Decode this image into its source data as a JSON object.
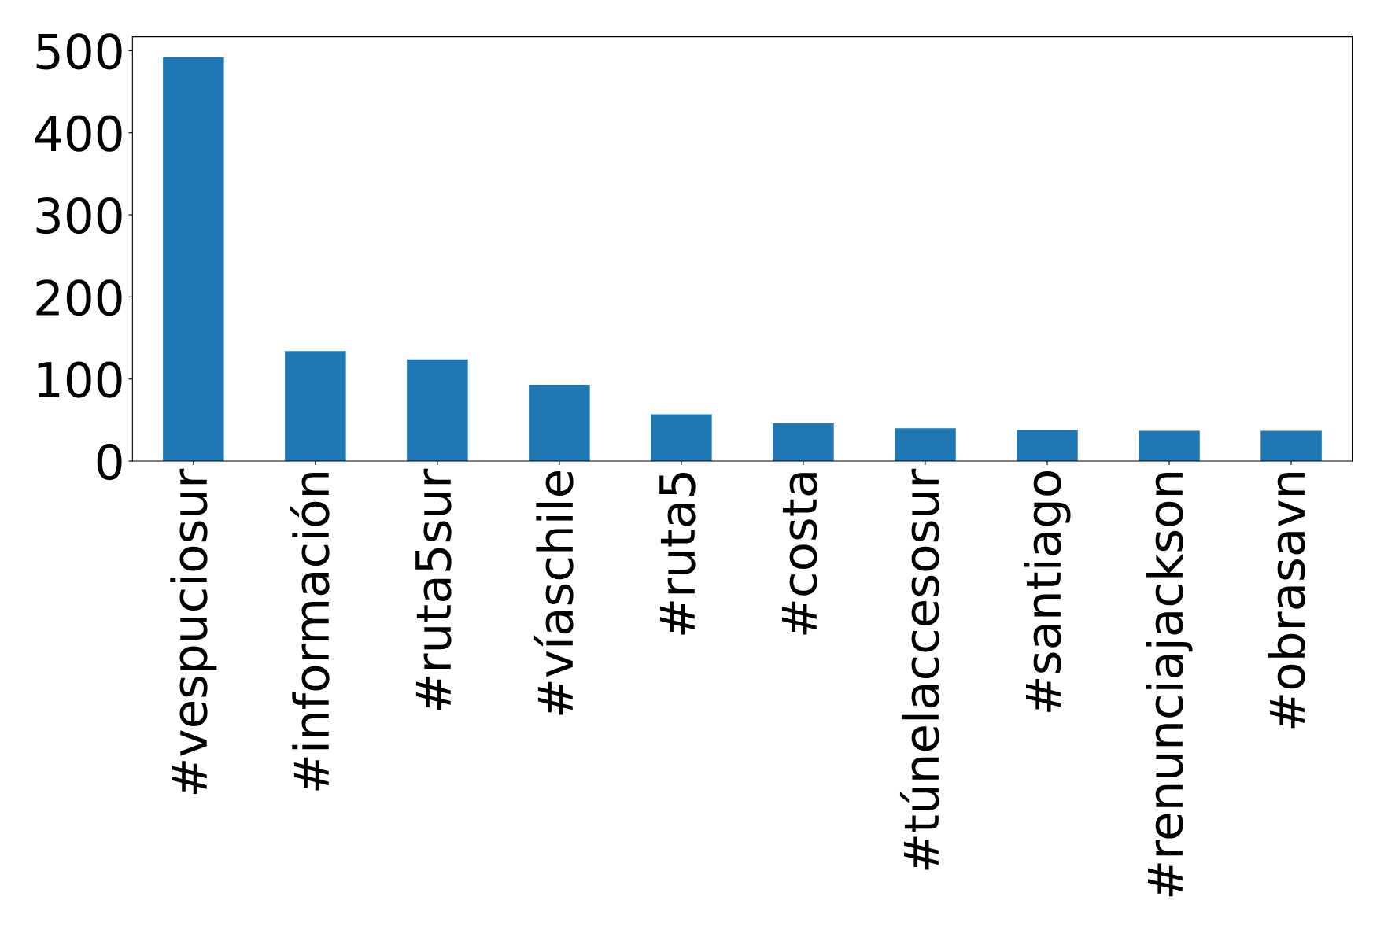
{
  "chart_data": {
    "type": "bar",
    "categories": [
      "#vespuciosur",
      "#información",
      "#ruta5sur",
      "#víaschile",
      "#ruta5",
      "#costa",
      "#túnelaccesosur",
      "#santiago",
      "#renunciajackson",
      "#obrasavn"
    ],
    "values": [
      492,
      134,
      124,
      93,
      57,
      46,
      40,
      38,
      37,
      37
    ],
    "color": "#1f77b4",
    "ylim": [
      0,
      517
    ],
    "yticks": [
      0,
      100,
      200,
      300,
      400,
      500
    ],
    "grid": false
  }
}
